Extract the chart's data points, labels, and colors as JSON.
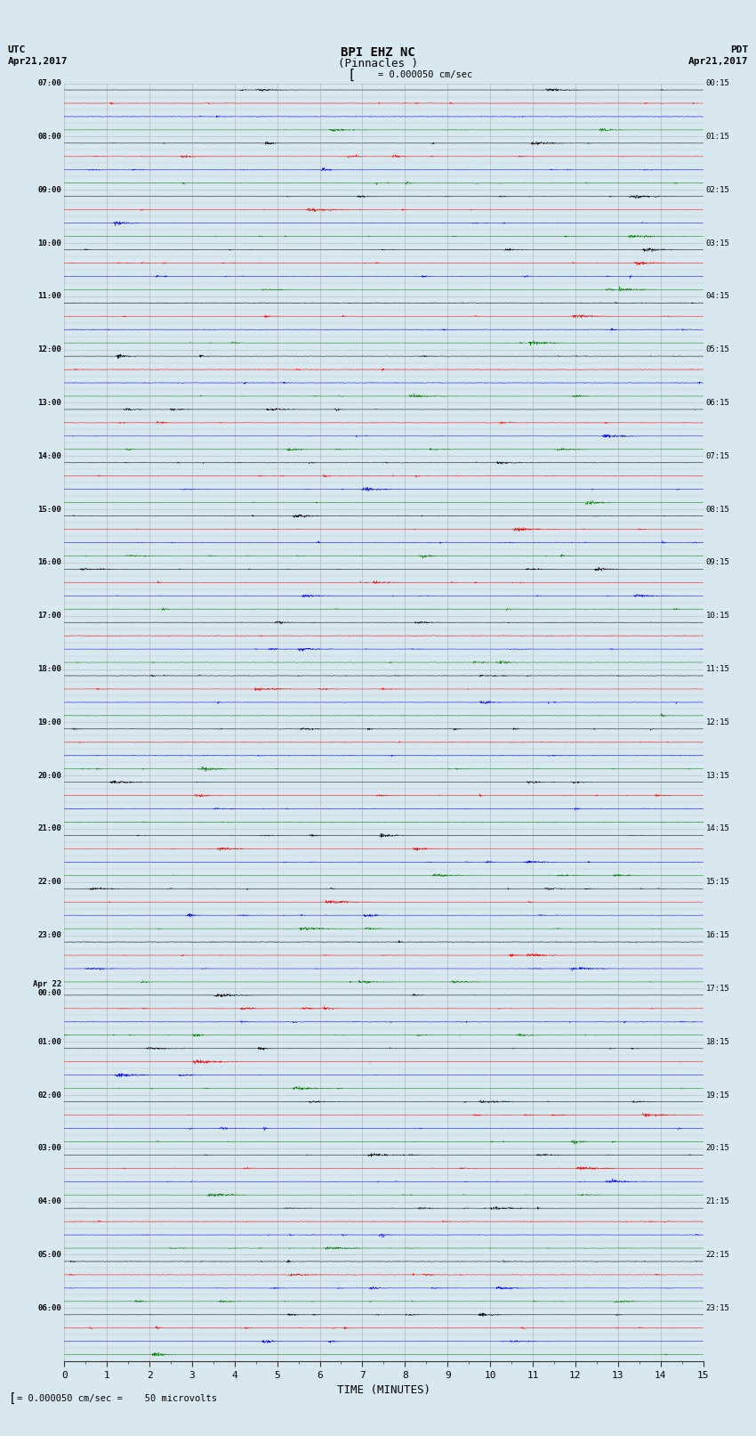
{
  "title_line1": "BPI EHZ NC",
  "title_line2": "(Pinnacles )",
  "scale_label": "= 0.000050 cm/sec",
  "bottom_label": "= 0.000050 cm/sec =    50 microvolts",
  "utc_label": "UTC",
  "utc_date": "Apr21,2017",
  "pdt_label": "PDT",
  "pdt_date": "Apr21,2017",
  "xlabel": "TIME (MINUTES)",
  "left_times": [
    "07:00",
    "08:00",
    "09:00",
    "10:00",
    "11:00",
    "12:00",
    "13:00",
    "14:00",
    "15:00",
    "16:00",
    "17:00",
    "18:00",
    "19:00",
    "20:00",
    "21:00",
    "22:00",
    "23:00",
    "Apr 22\n00:00",
    "01:00",
    "02:00",
    "03:00",
    "04:00",
    "05:00",
    "06:00"
  ],
  "right_times": [
    "00:15",
    "01:15",
    "02:15",
    "03:15",
    "04:15",
    "05:15",
    "06:15",
    "07:15",
    "08:15",
    "09:15",
    "10:15",
    "11:15",
    "12:15",
    "13:15",
    "14:15",
    "15:15",
    "16:15",
    "17:15",
    "18:15",
    "19:15",
    "20:15",
    "21:15",
    "22:15",
    "23:15"
  ],
  "n_rows": 24,
  "traces_per_row": 4,
  "row_colors": [
    "black",
    "red",
    "blue",
    "green"
  ],
  "bg_color": "#d8e8f0",
  "trace_bg": "#d8e8f0",
  "grid_color": "#888888",
  "x_min": 0,
  "x_max": 15,
  "x_ticks": [
    0,
    1,
    2,
    3,
    4,
    5,
    6,
    7,
    8,
    9,
    10,
    11,
    12,
    13,
    14,
    15
  ]
}
